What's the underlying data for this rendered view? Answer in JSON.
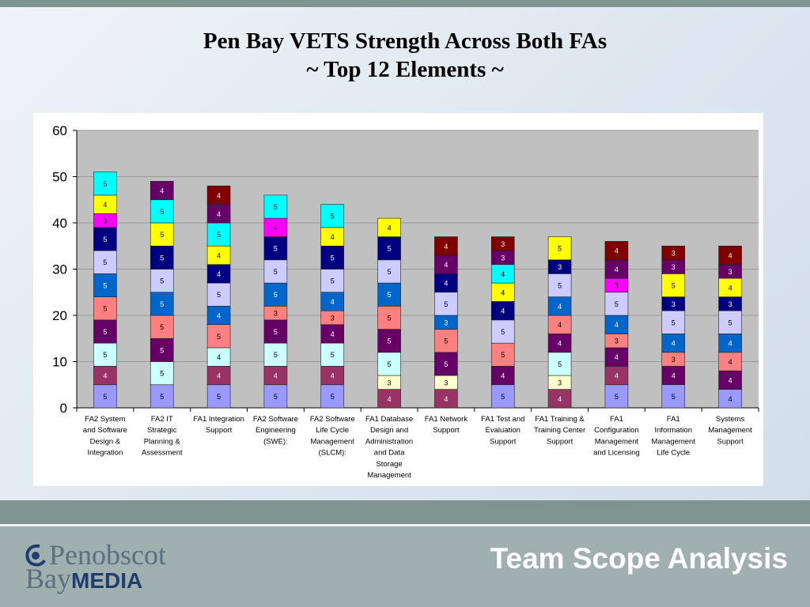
{
  "slide": {
    "title_line1": "Pen Bay VETS Strength Across Both FAs",
    "title_line2": "~ Top 12 Elements ~",
    "footer_title": "Team Scope Analysis"
  },
  "logo": {
    "line1": "Penobscot",
    "line2_a": "Bay",
    "line2_b": "MEDIA"
  },
  "colors": {
    "plot_bg": "#c0c0c0",
    "grid": "#9a9a9a",
    "seg_lavender": "#9999ff",
    "seg_maroon": "#993366",
    "seg_lightcyan": "#ccffff",
    "seg_plum": "#660066",
    "seg_salmon": "#ff8080",
    "seg_blue": "#0066cc",
    "seg_periwinkle": "#ccccff",
    "seg_navy": "#000080",
    "seg_magenta": "#ff00ff",
    "seg_yellow": "#ffff00",
    "seg_cyan": "#00ffff",
    "seg_darkred": "#800000",
    "seg_lightyellow": "#ffffcc"
  },
  "chart_data": {
    "type": "bar",
    "stacked": true,
    "title": "",
    "xlabel": "",
    "ylabel": "",
    "ylim": [
      0,
      60
    ],
    "yticks": [
      0,
      10,
      20,
      30,
      40,
      50,
      60
    ],
    "grid": true,
    "legend": "none",
    "categories": [
      [
        "FA2 System",
        "and Software",
        "Design &",
        "Integration"
      ],
      [
        "FA2 IT",
        "Strategic",
        "Planning &",
        "Assessment"
      ],
      [
        "FA1 Integration",
        "Support"
      ],
      [
        "FA2 Software",
        "Engineering",
        "(SWE):"
      ],
      [
        "FA2 Software",
        "Life Cycle",
        "Management",
        "(SLCM):"
      ],
      [
        "FA1 Database",
        "Design and",
        "Administration",
        "and Data",
        "Storage",
        "Management"
      ],
      [
        "FA1 Network",
        "Support"
      ],
      [
        "FA1 Test and",
        "Evaluation",
        "Support"
      ],
      [
        "FA1 Training &",
        "Training Center",
        "Support"
      ],
      [
        "FA1",
        "Configuration",
        "Management",
        "and Licensing"
      ],
      [
        "FA1",
        "Information",
        "Management",
        "Life Cycle"
      ],
      [
        "Systems",
        "Management",
        "Support"
      ]
    ],
    "bars": [
      [
        [
          5,
          "seg_lavender"
        ],
        [
          4,
          "seg_maroon"
        ],
        [
          5,
          "seg_lightcyan"
        ],
        [
          5,
          "seg_plum"
        ],
        [
          5,
          "seg_salmon"
        ],
        [
          5,
          "seg_blue"
        ],
        [
          5,
          "seg_periwinkle"
        ],
        [
          5,
          "seg_navy"
        ],
        [
          3,
          "seg_magenta"
        ],
        [
          4,
          "seg_yellow"
        ],
        [
          5,
          "seg_cyan"
        ]
      ],
      [
        [
          5,
          "seg_lavender"
        ],
        [
          5,
          "seg_lightcyan"
        ],
        [
          5,
          "seg_plum"
        ],
        [
          5,
          "seg_salmon"
        ],
        [
          5,
          "seg_blue"
        ],
        [
          5,
          "seg_periwinkle"
        ],
        [
          5,
          "seg_navy"
        ],
        [
          5,
          "seg_yellow"
        ],
        [
          5,
          "seg_cyan"
        ],
        [
          4,
          "seg_plum"
        ]
      ],
      [
        [
          5,
          "seg_lavender"
        ],
        [
          4,
          "seg_maroon"
        ],
        [
          4,
          "seg_lightcyan"
        ],
        [
          5,
          "seg_salmon"
        ],
        [
          4,
          "seg_blue"
        ],
        [
          5,
          "seg_periwinkle"
        ],
        [
          4,
          "seg_navy"
        ],
        [
          4,
          "seg_yellow"
        ],
        [
          5,
          "seg_cyan"
        ],
        [
          4,
          "seg_plum"
        ],
        [
          4,
          "seg_darkred"
        ]
      ],
      [
        [
          5,
          "seg_lavender"
        ],
        [
          4,
          "seg_maroon"
        ],
        [
          5,
          "seg_lightcyan"
        ],
        [
          5,
          "seg_plum"
        ],
        [
          3,
          "seg_salmon"
        ],
        [
          5,
          "seg_blue"
        ],
        [
          5,
          "seg_periwinkle"
        ],
        [
          5,
          "seg_navy"
        ],
        [
          4,
          "seg_magenta"
        ],
        [
          5,
          "seg_cyan"
        ]
      ],
      [
        [
          5,
          "seg_lavender"
        ],
        [
          4,
          "seg_maroon"
        ],
        [
          5,
          "seg_lightcyan"
        ],
        [
          4,
          "seg_plum"
        ],
        [
          3,
          "seg_salmon"
        ],
        [
          4,
          "seg_blue"
        ],
        [
          5,
          "seg_periwinkle"
        ],
        [
          5,
          "seg_navy"
        ],
        [
          4,
          "seg_yellow"
        ],
        [
          5,
          "seg_cyan"
        ]
      ],
      [
        [
          4,
          "seg_maroon"
        ],
        [
          3,
          "seg_lightyellow"
        ],
        [
          5,
          "seg_lightcyan"
        ],
        [
          5,
          "seg_plum"
        ],
        [
          5,
          "seg_salmon"
        ],
        [
          5,
          "seg_blue"
        ],
        [
          5,
          "seg_periwinkle"
        ],
        [
          5,
          "seg_navy"
        ],
        [
          4,
          "seg_yellow"
        ]
      ],
      [
        [
          4,
          "seg_maroon"
        ],
        [
          3,
          "seg_lightyellow"
        ],
        [
          5,
          "seg_plum"
        ],
        [
          5,
          "seg_salmon"
        ],
        [
          3,
          "seg_blue"
        ],
        [
          5,
          "seg_periwinkle"
        ],
        [
          4,
          "seg_navy"
        ],
        [
          4,
          "seg_plum"
        ],
        [
          4,
          "seg_darkred"
        ]
      ],
      [
        [
          5,
          "seg_lavender"
        ],
        [
          4,
          "seg_plum"
        ],
        [
          5,
          "seg_salmon"
        ],
        [
          5,
          "seg_periwinkle"
        ],
        [
          4,
          "seg_navy"
        ],
        [
          4,
          "seg_yellow"
        ],
        [
          4,
          "seg_cyan"
        ],
        [
          3,
          "seg_plum"
        ],
        [
          3,
          "seg_darkred"
        ]
      ],
      [
        [
          4,
          "seg_maroon"
        ],
        [
          3,
          "seg_lightyellow"
        ],
        [
          5,
          "seg_lightcyan"
        ],
        [
          4,
          "seg_plum"
        ],
        [
          4,
          "seg_salmon"
        ],
        [
          4,
          "seg_blue"
        ],
        [
          5,
          "seg_periwinkle"
        ],
        [
          3,
          "seg_navy"
        ],
        [
          5,
          "seg_yellow"
        ]
      ],
      [
        [
          5,
          "seg_lavender"
        ],
        [
          4,
          "seg_maroon"
        ],
        [
          4,
          "seg_plum"
        ],
        [
          3,
          "seg_salmon"
        ],
        [
          4,
          "seg_blue"
        ],
        [
          5,
          "seg_periwinkle"
        ],
        [
          3,
          "seg_magenta"
        ],
        [
          4,
          "seg_plum"
        ],
        [
          4,
          "seg_darkred"
        ]
      ],
      [
        [
          5,
          "seg_lavender"
        ],
        [
          4,
          "seg_plum"
        ],
        [
          3,
          "seg_salmon"
        ],
        [
          4,
          "seg_blue"
        ],
        [
          5,
          "seg_periwinkle"
        ],
        [
          3,
          "seg_navy"
        ],
        [
          5,
          "seg_yellow"
        ],
        [
          3,
          "seg_plum"
        ],
        [
          3,
          "seg_darkred"
        ]
      ],
      [
        [
          4,
          "seg_lavender"
        ],
        [
          4,
          "seg_plum"
        ],
        [
          4,
          "seg_salmon"
        ],
        [
          4,
          "seg_blue"
        ],
        [
          5,
          "seg_periwinkle"
        ],
        [
          3,
          "seg_navy"
        ],
        [
          4,
          "seg_yellow"
        ],
        [
          3,
          "seg_plum"
        ],
        [
          4,
          "seg_darkred"
        ]
      ]
    ]
  }
}
